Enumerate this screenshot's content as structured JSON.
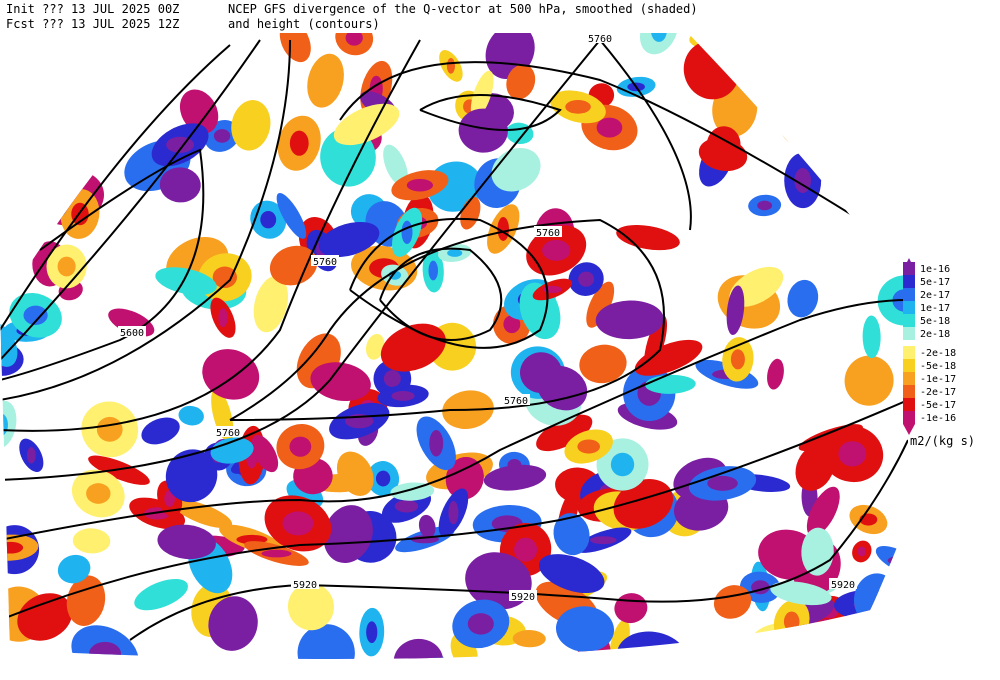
{
  "header": {
    "init": "Init  ??? 13 JUL 2025 00Z",
    "fcst": "Fcst ??? 13 JUL 2025 12Z",
    "title": "NCEP GFS divergence of the Q-vector at 500 hPa, smoothed (shaded)",
    "subtitle": "and height (contours)"
  },
  "contour_labels": [
    "5760",
    "5760",
    "5760",
    "5600",
    "5760",
    "5760",
    "5920",
    "5920",
    "5920"
  ],
  "legend": {
    "unit": "m2/(kg s)",
    "items": [
      {
        "label": "1e-16",
        "color": "#7a1fa2"
      },
      {
        "label": "5e-17",
        "color": "#2a2ad0"
      },
      {
        "label": "2e-17",
        "color": "#2a6ef0"
      },
      {
        "label": "1e-17",
        "color": "#1fb4f0"
      },
      {
        "label": "5e-18",
        "color": "#30e0d8"
      },
      {
        "label": "2e-18",
        "color": "#a8f0e0"
      },
      {
        "label": "-2e-18",
        "color": "#fff070"
      },
      {
        "label": "-5e-18",
        "color": "#f8d020"
      },
      {
        "label": "-1e-17",
        "color": "#f8a020"
      },
      {
        "label": "-2e-17",
        "color": "#f06018"
      },
      {
        "label": "-5e-17",
        "color": "#e01010"
      },
      {
        "label": "-1e-16",
        "color": "#c01070"
      }
    ]
  }
}
